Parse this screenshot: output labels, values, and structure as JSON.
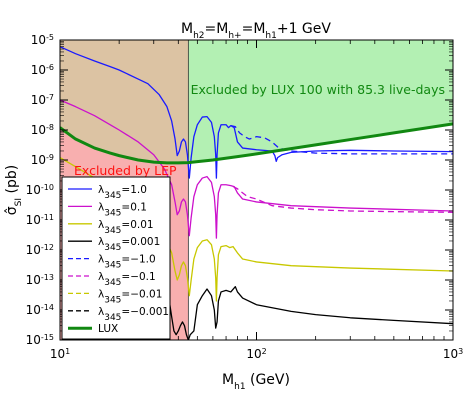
{
  "chart_data": {
    "type": "line",
    "title": "M_h2 = M_h+ = M_h1 + 1 GeV",
    "title_parts": [
      "M",
      "h2",
      "=M",
      "h+",
      "=M",
      "h1",
      "+1 GeV"
    ],
    "xlabel_parts": [
      "M",
      "h1",
      " (GeV)"
    ],
    "ylabel_parts": [
      "σ̂",
      "SI",
      " (pb)"
    ],
    "x_scale": "log",
    "y_scale": "log",
    "xlim": [
      10,
      1000
    ],
    "ylim": [
      1e-15,
      1e-05
    ],
    "x_ticks": [
      {
        "value": 10,
        "base": "10",
        "exp": "1"
      },
      {
        "value": 100,
        "base": "10",
        "exp": "2"
      },
      {
        "value": 1000,
        "base": "10",
        "exp": "3"
      }
    ],
    "y_ticks": [
      {
        "value": 1e-05,
        "base": "10",
        "exp": "-5"
      },
      {
        "value": 1e-06,
        "base": "10",
        "exp": "-6"
      },
      {
        "value": 1e-07,
        "base": "10",
        "exp": "-7"
      },
      {
        "value": 1e-08,
        "base": "10",
        "exp": "-8"
      },
      {
        "value": 1e-09,
        "base": "10",
        "exp": "-9"
      },
      {
        "value": 1e-10,
        "base": "10",
        "exp": "-10"
      },
      {
        "value": 1e-11,
        "base": "10",
        "exp": "-11"
      },
      {
        "value": 1e-12,
        "base": "10",
        "exp": "-12"
      },
      {
        "value": 1e-13,
        "base": "10",
        "exp": "-13"
      },
      {
        "value": 1e-14,
        "base": "10",
        "exp": "-14"
      },
      {
        "value": 1e-15,
        "base": "10",
        "exp": "-15"
      }
    ],
    "regions": [
      {
        "label": "Excluded by LEP",
        "x_from": 10,
        "x_to": 45,
        "color": "#f7a1a1",
        "label_color": "#ff1111"
      },
      {
        "label": "Excluded by LUX 100 with 85.3 live-days",
        "boundary": "LUX",
        "color": "#b3f0b3",
        "label_color": "#118811"
      }
    ],
    "series": [
      {
        "name": "λ345=1.0",
        "name_parts": [
          "λ",
          "345",
          "=1.0"
        ],
        "color": "#1a1aff",
        "dash": "solid",
        "points": [
          [
            10,
            6e-06
          ],
          [
            12,
            3.5e-06
          ],
          [
            15,
            2e-06
          ],
          [
            18,
            1.3e-06
          ],
          [
            20,
            1e-06
          ],
          [
            25,
            5e-07
          ],
          [
            28,
            3.5e-07
          ],
          [
            32,
            1.5e-07
          ],
          [
            35,
            6e-08
          ],
          [
            37,
            2e-08
          ],
          [
            38.5,
            5e-09
          ],
          [
            39.5,
            1.4e-09
          ],
          [
            40.5,
            2e-09
          ],
          [
            41.5,
            4e-09
          ],
          [
            42.5,
            5e-09
          ],
          [
            43.5,
            4e-09
          ],
          [
            44.5,
            1.5e-09
          ],
          [
            45.5,
            2.5e-10
          ],
          [
            46.5,
            1.2e-09
          ],
          [
            48,
            6e-09
          ],
          [
            50,
            1.5e-08
          ],
          [
            53,
            2.7e-08
          ],
          [
            56,
            2.8e-08
          ],
          [
            59,
            1.8e-08
          ],
          [
            61,
            6e-09
          ],
          [
            62,
            1.5e-09
          ],
          [
            62.5,
            2.5e-10
          ],
          [
            63,
            1.5e-09
          ],
          [
            64,
            8e-09
          ],
          [
            66,
            1.5e-08
          ],
          [
            70,
            1.5e-08
          ],
          [
            72,
            1.2e-08
          ],
          [
            74,
            1.4e-08
          ],
          [
            77,
            1.2e-08
          ],
          [
            80,
            4e-09
          ],
          [
            85,
            2.5e-09
          ],
          [
            100,
            2.2e-09
          ],
          [
            120,
            2e-09
          ],
          [
            124,
            1.4e-09
          ],
          [
            126,
            9e-10
          ],
          [
            128,
            1.2e-09
          ],
          [
            135,
            1.5e-09
          ],
          [
            150,
            1.8e-09
          ],
          [
            200,
            2e-09
          ],
          [
            300,
            2.1e-09
          ],
          [
            500,
            2e-09
          ],
          [
            1000,
            1.9e-09
          ]
        ]
      },
      {
        "name": "λ345=0.1",
        "name_parts": [
          "λ",
          "345",
          "=0.1"
        ],
        "color": "#cc11cc",
        "dash": "solid",
        "points": [
          [
            10,
            1e-07
          ],
          [
            12,
            6e-08
          ],
          [
            15,
            3e-08
          ],
          [
            20,
            1e-08
          ],
          [
            25,
            4e-09
          ],
          [
            30,
            1.5e-09
          ],
          [
            34,
            5e-10
          ],
          [
            37,
            1.5e-10
          ],
          [
            38.5,
            4e-11
          ],
          [
            39.5,
            1.5e-11
          ],
          [
            40.5,
            2e-11
          ],
          [
            41.5,
            4e-11
          ],
          [
            42.5,
            5e-11
          ],
          [
            43.5,
            4e-11
          ],
          [
            44.5,
            1.5e-11
          ],
          [
            45.5,
            3e-12
          ],
          [
            46.5,
            1.2e-11
          ],
          [
            48,
            6e-11
          ],
          [
            50,
            1.5e-10
          ],
          [
            53,
            2.5e-10
          ],
          [
            56,
            2.8e-10
          ],
          [
            59,
            1.8e-10
          ],
          [
            61,
            6e-11
          ],
          [
            62,
            1.5e-11
          ],
          [
            62.5,
            2.5e-12
          ],
          [
            63,
            1.5e-11
          ],
          [
            64,
            8e-11
          ],
          [
            66,
            1.5e-10
          ],
          [
            70,
            1.5e-10
          ],
          [
            74,
            1.4e-10
          ],
          [
            77,
            1.3e-10
          ],
          [
            80,
            8e-11
          ],
          [
            85,
            5e-11
          ],
          [
            100,
            4e-11
          ],
          [
            150,
            3e-11
          ],
          [
            300,
            2.5e-11
          ],
          [
            1000,
            2e-11
          ]
        ]
      },
      {
        "name": "λ345=0.01",
        "name_parts": [
          "λ",
          "345",
          "=0.01"
        ],
        "color": "#c8c800",
        "dash": "solid",
        "points": [
          [
            10,
            1.2e-09
          ],
          [
            12,
            6e-10
          ],
          [
            15,
            2.5e-10
          ],
          [
            20,
            8e-11
          ],
          [
            25,
            3e-11
          ],
          [
            30,
            1e-11
          ],
          [
            34,
            3e-12
          ],
          [
            37,
            8e-13
          ],
          [
            38.5,
            2e-13
          ],
          [
            39.5,
            1e-13
          ],
          [
            40.5,
            1.5e-13
          ],
          [
            41.5,
            3e-13
          ],
          [
            42.5,
            4e-13
          ],
          [
            43.5,
            3e-13
          ],
          [
            44.5,
            1.2e-13
          ],
          [
            45.5,
            3e-14
          ],
          [
            46.5,
            1e-13
          ],
          [
            48,
            5e-13
          ],
          [
            50,
            1.2e-12
          ],
          [
            53,
            2e-12
          ],
          [
            56,
            2.2e-12
          ],
          [
            59,
            1.5e-12
          ],
          [
            61,
            5e-13
          ],
          [
            62,
            1.2e-13
          ],
          [
            62.5,
            2e-14
          ],
          [
            63,
            1.2e-13
          ],
          [
            64,
            7e-13
          ],
          [
            66,
            1.3e-12
          ],
          [
            70,
            1.4e-12
          ],
          [
            73,
            1.2e-12
          ],
          [
            76,
            1.3e-12
          ],
          [
            80,
            8e-13
          ],
          [
            85,
            5e-13
          ],
          [
            100,
            4e-13
          ],
          [
            150,
            3e-13
          ],
          [
            300,
            2.5e-13
          ],
          [
            1000,
            2e-13
          ]
        ]
      },
      {
        "name": "λ345=0.001",
        "name_parts": [
          "λ",
          "345",
          "=0.001"
        ],
        "color": "#000000",
        "dash": "solid",
        "points": [
          [
            36,
            2e-14
          ],
          [
            37,
            6e-15
          ],
          [
            38,
            2e-15
          ],
          [
            39,
            1.5e-15
          ],
          [
            40,
            2e-15
          ],
          [
            41,
            3e-15
          ],
          [
            42,
            4e-15
          ],
          [
            43,
            3e-15
          ],
          [
            44,
            1.5e-15
          ],
          [
            45,
            1e-15
          ],
          [
            46,
            1.5e-15
          ],
          [
            48,
            2e-15
          ],
          [
            50,
            1.5e-14
          ],
          [
            53,
            3e-14
          ],
          [
            56,
            5e-14
          ],
          [
            59,
            3e-14
          ],
          [
            61,
            1e-14
          ],
          [
            62,
            2.5e-15
          ],
          [
            63,
            4e-15
          ],
          [
            64,
            2e-14
          ],
          [
            66,
            4e-14
          ],
          [
            70,
            4.5e-14
          ],
          [
            74,
            4e-14
          ],
          [
            78,
            6e-14
          ],
          [
            80,
            4e-14
          ],
          [
            85,
            2.5e-14
          ],
          [
            100,
            1.5e-14
          ],
          [
            150,
            9e-15
          ],
          [
            200,
            7e-15
          ],
          [
            300,
            5.5e-15
          ],
          [
            500,
            4.5e-15
          ],
          [
            1000,
            3.5e-15
          ]
        ]
      },
      {
        "name": "λ345=−1.0",
        "name_parts": [
          "λ",
          "345",
          "=−1.0"
        ],
        "color": "#1a1aff",
        "dash": "dashed",
        "points": [
          [
            74,
            1.4e-08
          ],
          [
            78,
            1.3e-08
          ],
          [
            82,
            8e-09
          ],
          [
            87,
            6e-09
          ],
          [
            92,
            5e-09
          ],
          [
            100,
            6e-09
          ],
          [
            110,
            5.5e-09
          ],
          [
            120,
            4e-09
          ],
          [
            130,
            2.5e-09
          ],
          [
            150,
            2e-09
          ],
          [
            200,
            1.7e-09
          ],
          [
            300,
            1.6e-09
          ],
          [
            500,
            1.6e-09
          ],
          [
            1000,
            1.6e-09
          ]
        ]
      },
      {
        "name": "λ345=−0.1",
        "name_parts": [
          "λ",
          "345",
          "=−0.1"
        ],
        "color": "#cc11cc",
        "dash": "dashed",
        "points": [
          [
            76,
            1.3e-10
          ],
          [
            80,
            1.1e-10
          ],
          [
            85,
            8e-11
          ],
          [
            90,
            6e-11
          ],
          [
            100,
            5e-11
          ],
          [
            120,
            3e-11
          ],
          [
            150,
            2.5e-11
          ],
          [
            200,
            2.2e-11
          ],
          [
            300,
            2e-11
          ],
          [
            500,
            1.9e-11
          ],
          [
            1000,
            1.8e-11
          ]
        ]
      },
      {
        "name": "λ345=−0.01",
        "name_parts": [
          "λ",
          "345",
          "=−0.01"
        ],
        "color": "#c8c800",
        "dash": "dashed",
        "points": []
      },
      {
        "name": "λ345=−0.001",
        "name_parts": [
          "λ",
          "345",
          "=−0.001"
        ],
        "color": "#000000",
        "dash": "dashed",
        "points": []
      },
      {
        "name": "LUX",
        "name_parts": [
          "LUX",
          "",
          ""
        ],
        "color": "#118811",
        "dash": "solid",
        "width": 3,
        "points": [
          [
            10,
            1.2e-08
          ],
          [
            12,
            5e-09
          ],
          [
            15,
            2.5e-09
          ],
          [
            18,
            1.7e-09
          ],
          [
            20,
            1.4e-09
          ],
          [
            25,
            1e-09
          ],
          [
            30,
            8.5e-10
          ],
          [
            35,
            8e-10
          ],
          [
            40,
            8e-10
          ],
          [
            45,
            8.2e-10
          ],
          [
            50,
            8.8e-10
          ],
          [
            60,
            1e-09
          ],
          [
            80,
            1.3e-09
          ],
          [
            100,
            1.6e-09
          ],
          [
            150,
            2.4e-09
          ],
          [
            200,
            3.2e-09
          ],
          [
            300,
            4.8e-09
          ],
          [
            500,
            8e-09
          ],
          [
            1000,
            1.6e-08
          ]
        ]
      }
    ],
    "legend": "lower-left",
    "grid": false
  }
}
